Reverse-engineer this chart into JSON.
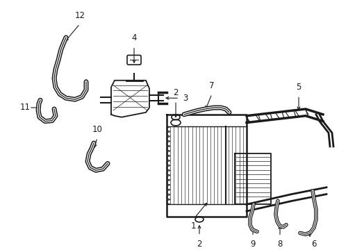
{
  "bg_color": "#ffffff",
  "line_color": "#1a1a1a",
  "fig_width": 4.89,
  "fig_height": 3.6,
  "dpi": 100,
  "label_fontsize": 8.5,
  "lw_base": 1.0
}
